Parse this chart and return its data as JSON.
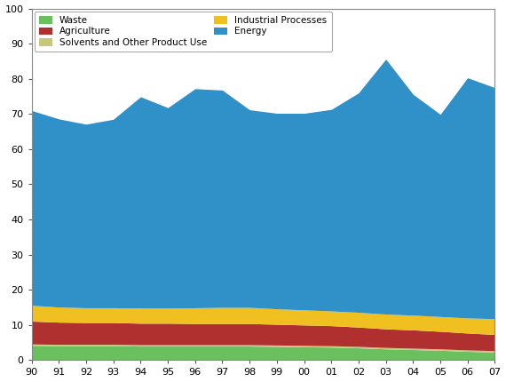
{
  "years": [
    1990,
    1991,
    1992,
    1993,
    1994,
    1995,
    1996,
    1997,
    1998,
    1999,
    2000,
    2001,
    2002,
    2003,
    2004,
    2005,
    2006,
    2007
  ],
  "waste": [
    4.2,
    4.1,
    4.1,
    4.1,
    4.0,
    4.0,
    4.0,
    4.0,
    4.0,
    3.9,
    3.8,
    3.7,
    3.5,
    3.2,
    3.0,
    2.8,
    2.5,
    2.3
  ],
  "solvents": [
    0.4,
    0.4,
    0.4,
    0.4,
    0.4,
    0.4,
    0.4,
    0.4,
    0.4,
    0.4,
    0.4,
    0.4,
    0.4,
    0.4,
    0.4,
    0.4,
    0.4,
    0.4
  ],
  "agriculture": [
    6.5,
    6.3,
    6.2,
    6.2,
    6.1,
    6.1,
    6.0,
    6.0,
    6.0,
    5.9,
    5.8,
    5.7,
    5.5,
    5.3,
    5.2,
    5.0,
    4.8,
    4.6
  ],
  "industrial": [
    4.5,
    4.3,
    4.2,
    4.2,
    4.3,
    4.3,
    4.5,
    4.6,
    4.6,
    4.4,
    4.3,
    4.2,
    4.2,
    4.2,
    4.2,
    4.2,
    4.3,
    4.5
  ],
  "energy": [
    55.4,
    53.5,
    52.2,
    53.6,
    60.1,
    57.0,
    62.3,
    61.8,
    56.2,
    55.6,
    55.9,
    57.3,
    62.4,
    72.5,
    62.8,
    57.5,
    68.3,
    65.7
  ],
  "colors": {
    "waste": "#6abf5e",
    "solvents": "#c8c87a",
    "agriculture": "#b03030",
    "industrial": "#f0c020",
    "energy": "#3090c8"
  },
  "labels": {
    "waste": "Waste",
    "solvents": "Solvents and Other Product Use",
    "agriculture": "Agriculture",
    "industrial": "Industrial Processes",
    "energy": "Energy"
  },
  "ylim": [
    0,
    100
  ],
  "yticks": [
    0,
    10,
    20,
    30,
    40,
    50,
    60,
    70,
    80,
    90,
    100
  ],
  "figsize": [
    5.7,
    4.3
  ],
  "dpi": 100
}
